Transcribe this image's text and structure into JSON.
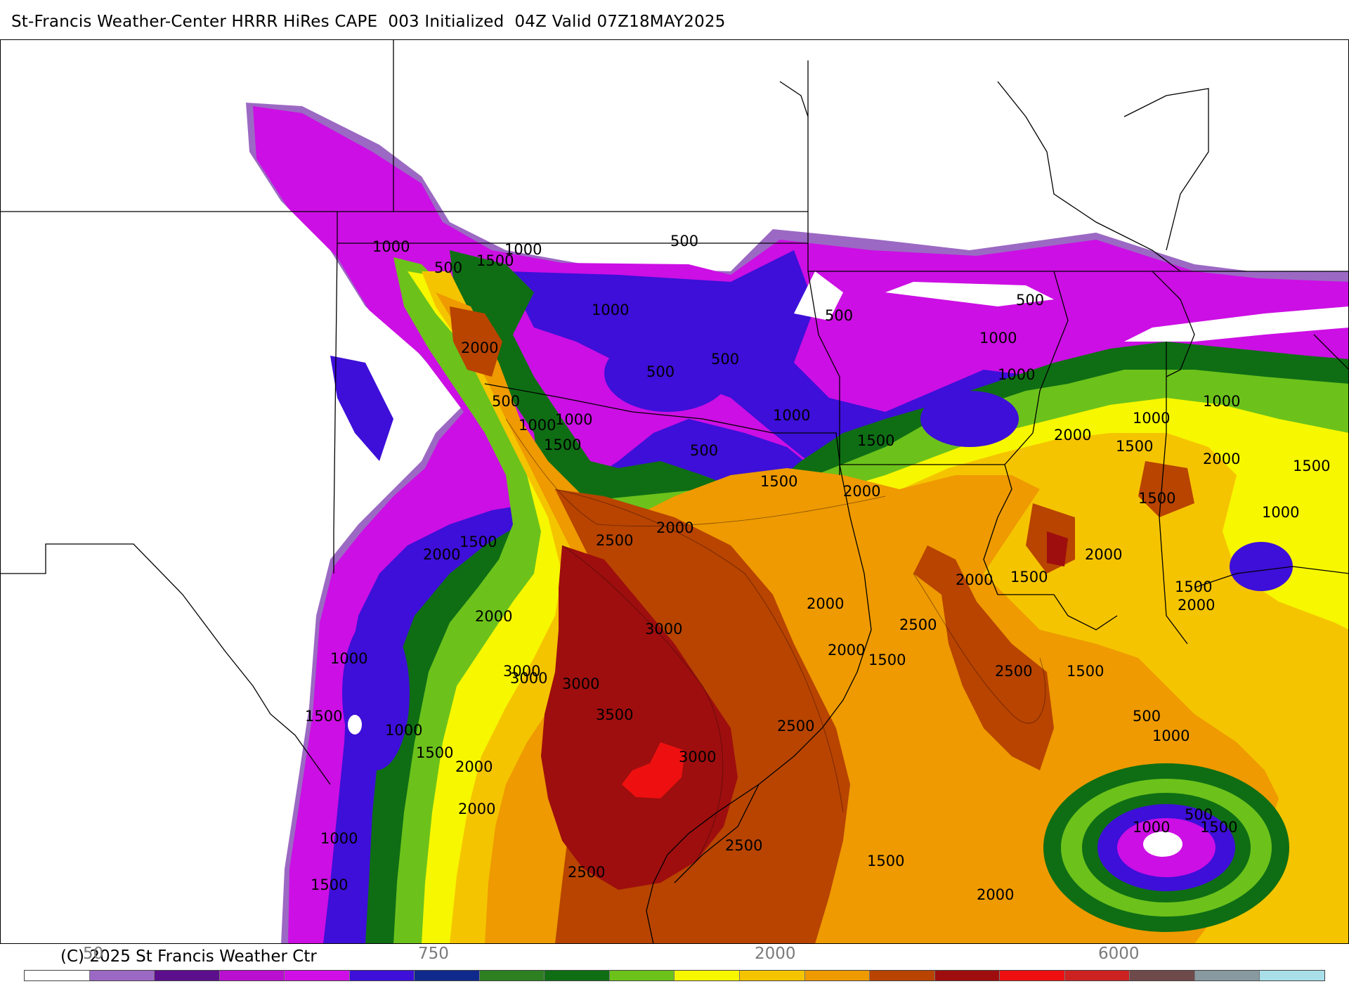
{
  "header": {
    "title": "St-Francis Weather-Center HRRR HiRes CAPE  003 Initialized  04Z Valid 07Z18MAY2025"
  },
  "footer": {
    "copyright": "(C) 2025 St Francis Weather Ctr"
  },
  "legend": {
    "tick_labels": [
      "50",
      "750",
      "2000",
      "6000"
    ],
    "colors": [
      "#ffffff",
      "#9b69c3",
      "#5c0f8c",
      "#b90fcf",
      "#cf0fe6",
      "#3d0fd8",
      "#0f2a8c",
      "#2d7f22",
      "#0f6e14",
      "#6cc21b",
      "#f7f700",
      "#f5c400",
      "#ee9a00",
      "#b84400",
      "#9e0e0e",
      "#ee1010",
      "#cc2222",
      "#6e4a4a",
      "#8899a0",
      "#a8dfe8"
    ]
  },
  "map": {
    "fill_colors": {
      "white": "#ffffff",
      "lavender": "#9b69c3",
      "purple": "#5c0f8c",
      "magenta": "#cc0fe4",
      "blue": "#3d0fd8",
      "darkgreen": "#0f6e14",
      "green": "#6cc21b",
      "yellow": "#f7f700",
      "gold": "#f5c400",
      "orange": "#ee9a00",
      "rust": "#b84400",
      "darkred": "#9e0e0e",
      "red": "#ee1010"
    },
    "contour_labels": [
      "1000",
      "500",
      "1500",
      "1000",
      "2000",
      "500",
      "1000",
      "500",
      "500",
      "1000",
      "1000",
      "1500",
      "500",
      "500",
      "1000",
      "500",
      "1000",
      "1000",
      "1500",
      "500",
      "1000",
      "1500",
      "2000",
      "1000",
      "1500",
      "2000",
      "1500",
      "2000",
      "2500",
      "2000",
      "1500",
      "2000",
      "1000",
      "2000",
      "1500",
      "1500",
      "2000",
      "1500",
      "3000",
      "2000",
      "2500",
      "2000",
      "2000",
      "1000",
      "3000",
      "3000",
      "2500",
      "2000",
      "1500",
      "3500",
      "2500",
      "1500",
      "500",
      "1000",
      "1000",
      "1500",
      "3000",
      "3000",
      "1500",
      "2000",
      "1000",
      "2500",
      "1500",
      "500",
      "1000",
      "1500",
      "2500",
      "1500",
      "2000",
      "2000"
    ]
  }
}
